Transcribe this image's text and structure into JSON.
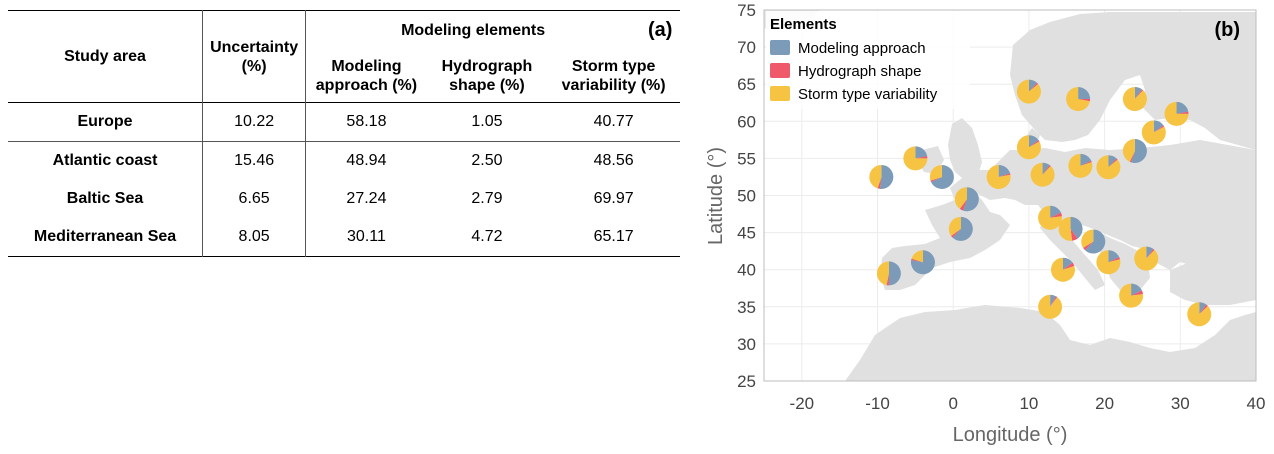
{
  "table": {
    "panel_label": "(a)",
    "headers": {
      "study_area": "Study area",
      "uncertainty": "Uncertainty (%)",
      "group": "Modeling elements",
      "modeling_approach": "Modeling approach (%)",
      "hydrograph_shape": "Hydrograph shape (%)",
      "storm_type": "Storm type variability (%)"
    },
    "rows": [
      {
        "area": "Europe",
        "uncertainty": "10.22",
        "modeling": "58.18",
        "hydrograph": "1.05",
        "storm": "40.77"
      },
      {
        "area": "Atlantic coast",
        "uncertainty": "15.46",
        "modeling": "48.94",
        "hydrograph": "2.50",
        "storm": "48.56"
      },
      {
        "area": "Baltic Sea",
        "uncertainty": "6.65",
        "modeling": "27.24",
        "hydrograph": "2.79",
        "storm": "69.97"
      },
      {
        "area": "Mediterranean Sea",
        "uncertainty": "8.05",
        "modeling": "30.11",
        "hydrograph": "4.72",
        "storm": "65.17"
      }
    ]
  },
  "chart_data": {
    "type": "pie",
    "panel_label": "(b)",
    "xlabel": "Longitude (°)",
    "ylabel": "Latitude (°)",
    "xlim": [
      -25,
      40
    ],
    "ylim": [
      25,
      75
    ],
    "xticks": [
      -20,
      -10,
      0,
      10,
      20,
      30,
      40
    ],
    "yticks": [
      25,
      30,
      35,
      40,
      45,
      50,
      55,
      60,
      65,
      70,
      75
    ],
    "grid": true,
    "legend": {
      "title": "Elements",
      "placement": "top-left",
      "entries": [
        "Modeling approach",
        "Hydrograph shape",
        "Storm type variability"
      ]
    },
    "colors": {
      "modeling": "#7b9bb8",
      "hydrograph": "#f0596a",
      "storm": "#f6c343",
      "land": "#e0e0e0"
    },
    "pies": [
      {
        "lon": -9.5,
        "lat": 52.5,
        "values": [
          52,
          3,
          45
        ]
      },
      {
        "lon": -5.0,
        "lat": 55.0,
        "values": [
          22,
          3,
          75
        ]
      },
      {
        "lon": -1.5,
        "lat": 52.5,
        "values": [
          68,
          2,
          30
        ]
      },
      {
        "lon": 1.8,
        "lat": 49.5,
        "values": [
          55,
          5,
          40
        ]
      },
      {
        "lon": 1.0,
        "lat": 45.5,
        "values": [
          62,
          3,
          35
        ]
      },
      {
        "lon": -8.5,
        "lat": 39.5,
        "values": [
          50,
          3,
          47
        ]
      },
      {
        "lon": -4.0,
        "lat": 41.0,
        "values": [
          78,
          2,
          20
        ]
      },
      {
        "lon": 6.0,
        "lat": 52.5,
        "values": [
          20,
          2,
          78
        ]
      },
      {
        "lon": 10.0,
        "lat": 56.5,
        "values": [
          15,
          2,
          83
        ]
      },
      {
        "lon": 10.0,
        "lat": 64.0,
        "values": [
          12,
          2,
          86
        ]
      },
      {
        "lon": 16.5,
        "lat": 63.0,
        "values": [
          25,
          3,
          72
        ]
      },
      {
        "lon": 24.0,
        "lat": 63.0,
        "values": [
          10,
          2,
          88
        ]
      },
      {
        "lon": 29.5,
        "lat": 61.0,
        "values": [
          22,
          3,
          75
        ]
      },
      {
        "lon": 26.5,
        "lat": 58.5,
        "values": [
          15,
          2,
          83
        ]
      },
      {
        "lon": 24.0,
        "lat": 56.0,
        "values": [
          55,
          2,
          43
        ]
      },
      {
        "lon": 16.8,
        "lat": 54.0,
        "values": [
          18,
          2,
          80
        ]
      },
      {
        "lon": 20.5,
        "lat": 53.8,
        "values": [
          12,
          2,
          86
        ]
      },
      {
        "lon": 11.8,
        "lat": 52.8,
        "values": [
          10,
          2,
          88
        ]
      },
      {
        "lon": 12.8,
        "lat": 47.0,
        "values": [
          18,
          5,
          77
        ]
      },
      {
        "lon": 15.5,
        "lat": 45.5,
        "values": [
          40,
          8,
          52
        ]
      },
      {
        "lon": 18.5,
        "lat": 43.8,
        "values": [
          62,
          4,
          34
        ]
      },
      {
        "lon": 20.5,
        "lat": 41.0,
        "values": [
          18,
          3,
          79
        ]
      },
      {
        "lon": 25.5,
        "lat": 41.5,
        "values": [
          10,
          2,
          88
        ]
      },
      {
        "lon": 14.5,
        "lat": 40.0,
        "values": [
          15,
          5,
          80
        ]
      },
      {
        "lon": 12.8,
        "lat": 35.0,
        "values": [
          8,
          2,
          90
        ]
      },
      {
        "lon": 23.5,
        "lat": 36.5,
        "values": [
          18,
          5,
          77
        ]
      },
      {
        "lon": 32.5,
        "lat": 34.0,
        "values": [
          10,
          3,
          87
        ]
      }
    ]
  }
}
